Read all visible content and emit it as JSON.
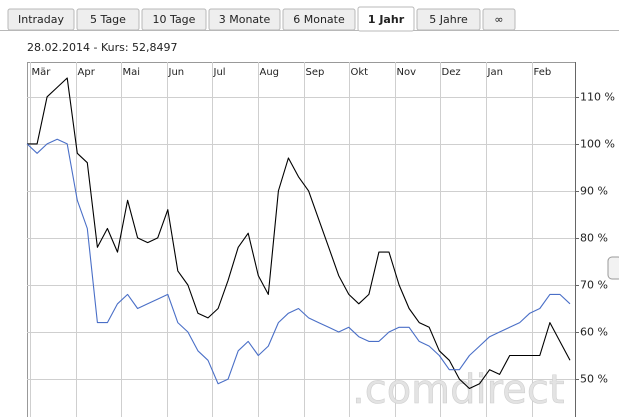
{
  "tabs": [
    {
      "label": "Intraday"
    },
    {
      "label": "5 Tage"
    },
    {
      "label": "10 Tage"
    },
    {
      "label": "3 Monate"
    },
    {
      "label": "6 Monate"
    },
    {
      "label": "1 Jahr",
      "active": true
    },
    {
      "label": "5 Jahre"
    },
    {
      "label": "∞"
    }
  ],
  "chart_data": {
    "type": "line",
    "title": "28.02.2014  -  Kurs: 52,8497",
    "month_labels": [
      "Mär",
      "Apr",
      "Mai",
      "Jun",
      "Jul",
      "Aug",
      "Sep",
      "Okt",
      "Nov",
      "Dez",
      "Jan",
      "Feb"
    ],
    "series": [
      {
        "color": "#000000",
        "values": [
          100,
          100,
          110,
          112,
          114,
          98,
          96,
          78,
          82,
          77,
          88,
          80,
          79,
          80,
          86,
          73,
          70,
          64,
          63,
          65,
          71,
          78,
          81,
          72,
          68,
          90,
          97,
          93,
          90,
          84,
          78,
          72,
          68,
          66,
          68,
          77,
          77,
          70,
          65,
          62,
          61,
          56,
          54,
          50,
          48,
          49,
          52,
          51,
          55,
          55,
          55,
          55,
          62,
          58,
          54
        ]
      },
      {
        "color": "#4a6fc7",
        "values": [
          100,
          98,
          100,
          101,
          100,
          88,
          82,
          62,
          62,
          66,
          68,
          65,
          66,
          67,
          68,
          62,
          60,
          56,
          54,
          49,
          50,
          56,
          58,
          55,
          57,
          62,
          64,
          65,
          63,
          62,
          61,
          60,
          61,
          59,
          58,
          58,
          60,
          61,
          61,
          58,
          57,
          55,
          52,
          52,
          55,
          57,
          59,
          60,
          61,
          62,
          64,
          65,
          68,
          68,
          66
        ]
      }
    ],
    "ylim": [
      43,
      117.4
    ],
    "yticks": [
      {
        "value": 50,
        "label": "50 %"
      },
      {
        "value": 60,
        "label": "60 %"
      },
      {
        "value": 70,
        "label": "70 %"
      },
      {
        "value": 80,
        "label": "80 %"
      },
      {
        "value": 90,
        "label": "90 %"
      },
      {
        "value": 100,
        "label": "100 %"
      },
      {
        "value": 110,
        "label": "110 %"
      }
    ],
    "grid": true,
    "watermark": ".comdirect"
  }
}
